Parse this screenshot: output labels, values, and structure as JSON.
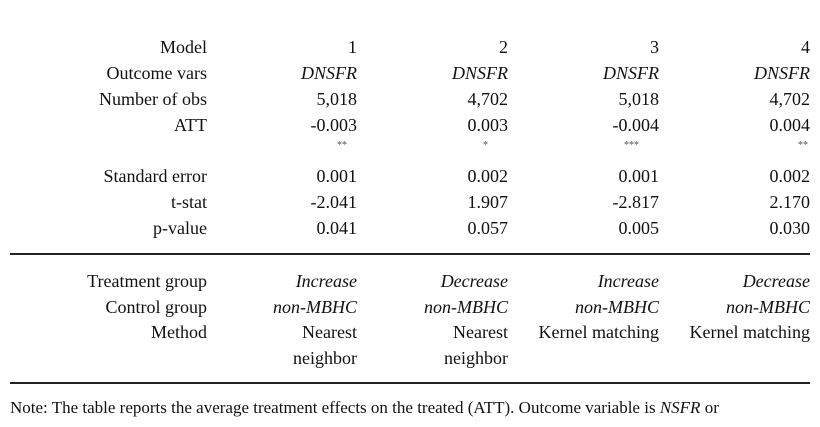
{
  "table": {
    "rows": [
      {
        "label": "Model",
        "values": [
          "1",
          "2",
          "3",
          "4"
        ]
      },
      {
        "label": "Outcome vars",
        "values": [
          "DNSFR",
          "DNSFR",
          "DNSFR",
          "DNSFR"
        ]
      },
      {
        "label": "Number of obs",
        "values": [
          "5,018",
          "4,702",
          "5,018",
          "4,702"
        ]
      },
      {
        "label": "ATT",
        "values": [
          "-0.003",
          "0.003",
          "-0.004",
          "0.004"
        ]
      },
      {
        "label": "",
        "values": [
          "**",
          "*",
          "***",
          "**"
        ]
      },
      {
        "label": "Standard error",
        "values": [
          "0.001",
          "0.002",
          "0.001",
          "0.002"
        ]
      },
      {
        "label": "t-stat",
        "values": [
          "-2.041",
          "1.907",
          "-2.817",
          "2.170"
        ]
      },
      {
        "label": "p-value",
        "values": [
          "0.041",
          "0.057",
          "0.005",
          "0.030"
        ]
      },
      {
        "label": "Treatment group",
        "values": [
          "Increase",
          "Decrease",
          "Increase",
          "Decrease"
        ]
      },
      {
        "label": "Control group",
        "values": [
          "non-MBHC",
          "non-MBHC",
          "non-MBHC",
          "non-MBHC"
        ]
      },
      {
        "label": "Method",
        "values": [
          "Nearest",
          "Nearest",
          "Kernel matching",
          "Kernel matching"
        ]
      },
      {
        "label": "",
        "values": [
          "neighbor",
          "neighbor",
          "",
          ""
        ]
      }
    ]
  },
  "note": {
    "prefix": "Note: The table reports the average treatment effects on the treated (ATT). Outcome variable is ",
    "italic": "NSFR",
    "suffix": " or"
  }
}
